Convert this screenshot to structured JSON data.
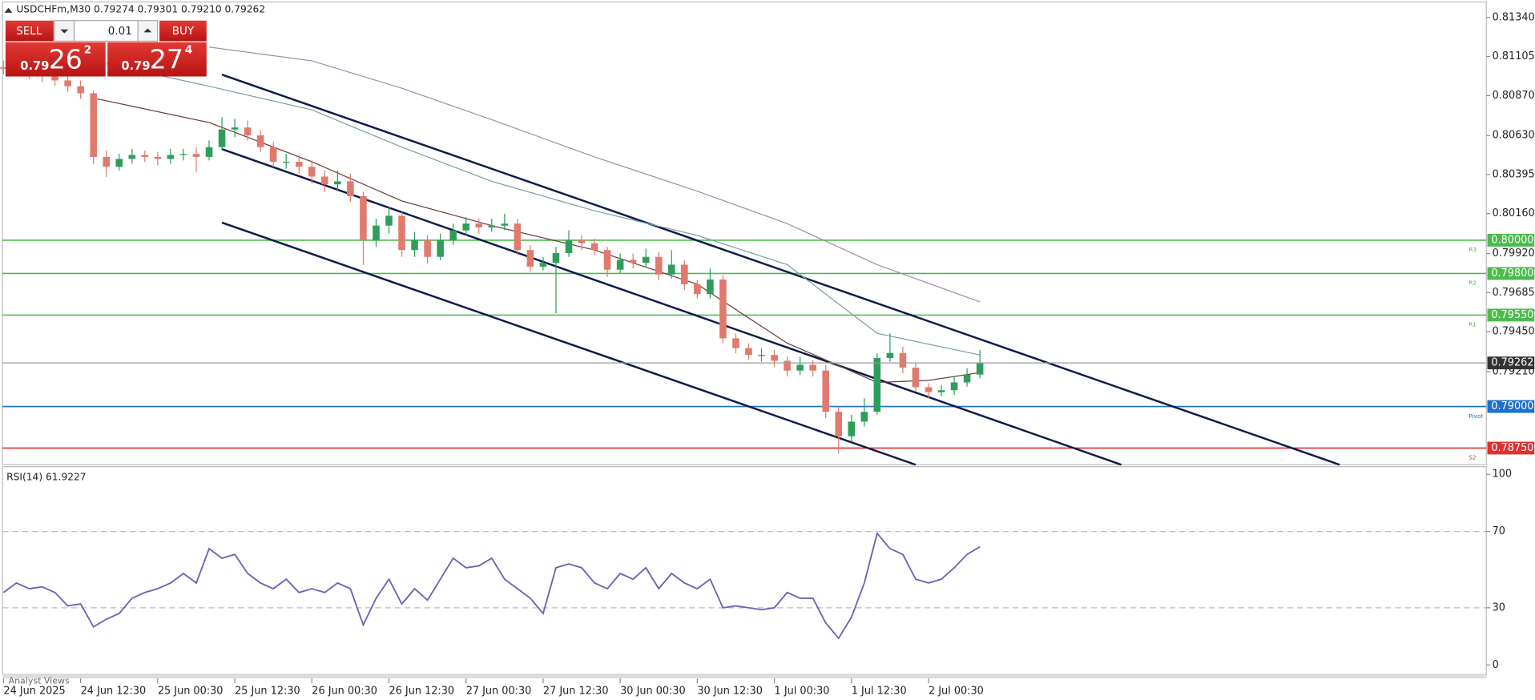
{
  "header": {
    "title": "USDCHFm,M30  0.79274 0.79301 0.79210 0.79262"
  },
  "trade_panel": {
    "sell": "SELL",
    "lot": "0.01",
    "buy": "BUY",
    "bid_big": "0.79",
    "bid_main": "26",
    "bid_frac": "2",
    "ask_big": "0.79",
    "ask_main": "27",
    "ask_frac": "4"
  },
  "footer": {
    "tab": "Analyst Views"
  },
  "chart_data": [
    {
      "type": "candlestick",
      "up_color": "#2e9e5b",
      "down_color": "#e07a6e",
      "open": [
        0.8104,
        0.81032,
        0.8102,
        0.81002,
        0.80985,
        0.80961,
        0.80926,
        0.80884,
        0.80501,
        0.80442,
        0.80489,
        0.80513,
        0.80501,
        0.80489,
        0.80513,
        0.80519,
        0.80501,
        0.8056,
        0.80666,
        0.80678,
        0.80631,
        0.8056,
        0.80472,
        0.80472,
        0.80442,
        0.80383,
        0.80336,
        0.80354,
        0.80265,
        0.8,
        0.80088,
        0.80147,
        0.79941,
        0.8,
        0.799,
        0.8,
        0.80059,
        0.801,
        0.80077,
        0.80088,
        0.801,
        0.79941,
        0.79841,
        0.79864,
        0.79923,
        0.8,
        0.79982,
        0.79941,
        0.79823,
        0.79882,
        0.79864,
        0.799,
        0.79794,
        0.79853,
        0.79735,
        0.79676,
        0.79764,
        0.7941,
        0.79351,
        0.7931,
        0.7931,
        0.79275,
        0.79216,
        0.79251,
        0.79216,
        0.78968,
        0.78821,
        0.78909,
        0.78968,
        0.79292,
        0.79322,
        0.79234,
        0.79116,
        0.79086,
        0.79098,
        0.79145,
        0.79192
      ],
      "high": [
        0.8108,
        0.8106,
        0.8105,
        0.8103,
        0.8101,
        0.8099,
        0.8096,
        0.809,
        0.8054,
        0.8052,
        0.8055,
        0.8054,
        0.8053,
        0.8055,
        0.8055,
        0.8056,
        0.806,
        0.8074,
        0.8073,
        0.8072,
        0.8066,
        0.8059,
        0.8052,
        0.8051,
        0.8048,
        0.8042,
        0.8042,
        0.804,
        0.8029,
        0.8013,
        0.802,
        0.8017,
        0.8005,
        0.8003,
        0.8004,
        0.801,
        0.8014,
        0.8013,
        0.8013,
        0.8016,
        0.8013,
        0.7997,
        0.799,
        0.7996,
        0.8006,
        0.8003,
        0.8001,
        0.7996,
        0.7992,
        0.7992,
        0.7995,
        0.7993,
        0.7994,
        0.7988,
        0.7976,
        0.7983,
        0.7979,
        0.7944,
        0.7938,
        0.7935,
        0.7934,
        0.793,
        0.793,
        0.7928,
        0.7925,
        0.79,
        0.7895,
        0.7905,
        0.7932,
        0.7944,
        0.7936,
        0.7926,
        0.7914,
        0.7913,
        0.7918,
        0.7923,
        0.7934
      ],
      "low": [
        0.81,
        0.8099,
        0.8097,
        0.8095,
        0.8093,
        0.8089,
        0.8085,
        0.8046,
        0.8038,
        0.8042,
        0.8046,
        0.8047,
        0.8045,
        0.8046,
        0.8048,
        0.8041,
        0.8048,
        0.8054,
        0.8062,
        0.806,
        0.8053,
        0.8044,
        0.8043,
        0.804,
        0.8034,
        0.8029,
        0.803,
        0.8023,
        0.7985,
        0.7996,
        0.8004,
        0.799,
        0.799,
        0.7986,
        0.7988,
        0.7997,
        0.8003,
        0.8004,
        0.8005,
        0.8006,
        0.7991,
        0.7981,
        0.7982,
        0.7956,
        0.799,
        0.7994,
        0.7991,
        0.7978,
        0.798,
        0.7983,
        0.7984,
        0.7976,
        0.7977,
        0.797,
        0.7965,
        0.7965,
        0.7938,
        0.7932,
        0.7928,
        0.7927,
        0.7924,
        0.7918,
        0.7919,
        0.7918,
        0.7893,
        0.7872,
        0.7879,
        0.7888,
        0.7895,
        0.7927,
        0.792,
        0.7909,
        0.7905,
        0.7906,
        0.7907,
        0.7912,
        0.7917
      ],
      "close": [
        0.81032,
        0.8102,
        0.81002,
        0.80985,
        0.80961,
        0.80926,
        0.80884,
        0.80501,
        0.80442,
        0.80489,
        0.80513,
        0.80501,
        0.80489,
        0.80513,
        0.80519,
        0.80501,
        0.8056,
        0.80666,
        0.80678,
        0.80631,
        0.8056,
        0.80472,
        0.80472,
        0.80442,
        0.80383,
        0.80336,
        0.80354,
        0.80265,
        0.8,
        0.80088,
        0.80147,
        0.79941,
        0.8,
        0.799,
        0.8,
        0.80059,
        0.801,
        0.80077,
        0.80088,
        0.801,
        0.79941,
        0.79841,
        0.79864,
        0.79923,
        0.8,
        0.79982,
        0.79941,
        0.79823,
        0.79882,
        0.79864,
        0.799,
        0.79794,
        0.79853,
        0.79735,
        0.79676,
        0.79764,
        0.7941,
        0.79351,
        0.7931,
        0.7931,
        0.79275,
        0.79216,
        0.79251,
        0.79216,
        0.78968,
        0.78821,
        0.78909,
        0.78968,
        0.79292,
        0.79322,
        0.79234,
        0.79116,
        0.79086,
        0.79098,
        0.79145,
        0.79192,
        0.79262
      ],
      "series": [
        {
          "color": "#a48cad",
          "x": [
            16,
            24,
            31,
            38,
            46,
            54,
            61,
            68,
            76
          ],
          "values": [
            0.81162,
            0.81079,
            0.80914,
            0.80725,
            0.80501,
            0.80295,
            0.801,
            0.79853,
            0.79629
          ]
        },
        {
          "color": "#7a9e9e",
          "x": [
            8,
            16,
            24,
            31,
            38,
            46,
            54,
            61,
            68,
            76
          ],
          "values": [
            0.81061,
            0.80926,
            0.80784,
            0.8056,
            0.80354,
            0.80177,
            0.80029,
            0.79853,
            0.7944,
            0.7931
          ]
        },
        {
          "color": "#6b3b3b",
          "x": [
            7,
            16,
            24,
            31,
            38,
            46,
            54,
            61,
            68,
            72,
            76
          ],
          "values": [
            0.80855,
            0.80708,
            0.80472,
            0.80236,
            0.80088,
            0.79941,
            0.79735,
            0.79381,
            0.79145,
            0.79157,
            0.79204
          ]
        }
      ],
      "trendlines": [
        {
          "color": "#0b1a4a",
          "x": [
            17,
            104
          ],
          "values": [
            0.80996,
            0.7865
          ]
        },
        {
          "color": "#0b1a4a",
          "x": [
            17,
            87
          ],
          "values": [
            0.80548,
            0.7865
          ]
        },
        {
          "color": "#0b1a4a",
          "x": [
            17,
            71
          ],
          "values": [
            0.80106,
            0.7865
          ]
        }
      ],
      "levels": [
        {
          "value": 0.8,
          "label": "0.80000",
          "name": "R3",
          "color": "#4cbb4c"
        },
        {
          "value": 0.798,
          "label": "0.79800",
          "name": "R2",
          "color": "#4cbb4c"
        },
        {
          "value": 0.7955,
          "label": "0.79550",
          "name": "R1",
          "color": "#4cbb4c"
        },
        {
          "value": 0.79,
          "label": "0.79000",
          "name": "Pivot",
          "color": "#1e6fd0"
        },
        {
          "value": 0.7875,
          "label": "0.78750",
          "name": "S2",
          "color": "#e03030"
        }
      ],
      "last": {
        "value": 0.79262,
        "label": "0.79262",
        "color": "#333"
      },
      "ylim": [
        0.7865,
        0.81433
      ],
      "yticks": [
        {
          "value": 0.8134,
          "label": "0.81340"
        },
        {
          "value": 0.81105,
          "label": "0.81105"
        },
        {
          "value": 0.8087,
          "label": "0.80870"
        },
        {
          "value": 0.8063,
          "label": "0.80630"
        },
        {
          "value": 0.80395,
          "label": "0.80395"
        },
        {
          "value": 0.8016,
          "label": "0.80160"
        },
        {
          "value": 0.7992,
          "label": "0.79920"
        },
        {
          "value": 0.79685,
          "label": "0.79685"
        },
        {
          "value": 0.7945,
          "label": "0.79450"
        },
        {
          "value": 0.7921,
          "label": "0.79210"
        }
      ],
      "xticks": [
        {
          "value": 0,
          "label": "24 Jun 2025"
        },
        {
          "value": 6,
          "label": "24 Jun 12:30"
        },
        {
          "value": 12,
          "label": "25 Jun 00:30"
        },
        {
          "value": 18,
          "label": "25 Jun 12:30"
        },
        {
          "value": 24,
          "label": "26 Jun 00:30"
        },
        {
          "value": 30,
          "label": "26 Jun 12:30"
        },
        {
          "value": 36,
          "label": "27 Jun 00:30"
        },
        {
          "value": 42,
          "label": "27 Jun 12:30"
        },
        {
          "value": 48,
          "label": "30 Jun 00:30"
        },
        {
          "value": 54,
          "label": "30 Jun 12:30"
        },
        {
          "value": 60,
          "label": "1 Jul 00:30"
        },
        {
          "value": 66,
          "label": "1 Jul 12:30"
        },
        {
          "value": 72,
          "label": "2 Jul 00:30"
        }
      ]
    },
    {
      "type": "line",
      "title": "RSI(14) 61.9227",
      "color": "#6f5fb5",
      "values": [
        38,
        43,
        40,
        41,
        38,
        31,
        32,
        20,
        24,
        27,
        35,
        38,
        40,
        43,
        48,
        43,
        61,
        56,
        58,
        48,
        43,
        40,
        45,
        38,
        40,
        38,
        43,
        40,
        21,
        35,
        45,
        32,
        40,
        34,
        45,
        56,
        51,
        52,
        56,
        45,
        40,
        35,
        27,
        51,
        53,
        51,
        43,
        40,
        48,
        45,
        51,
        40,
        48,
        43,
        40,
        45,
        30,
        31,
        30,
        29,
        30,
        38,
        35,
        35,
        22,
        14,
        25,
        43,
        69,
        61,
        58,
        45,
        43,
        45,
        51,
        58,
        62
      ],
      "levels": [
        70,
        30
      ],
      "ylim": [
        -5,
        104
      ],
      "yticks": [
        0,
        30,
        70,
        100
      ]
    }
  ]
}
